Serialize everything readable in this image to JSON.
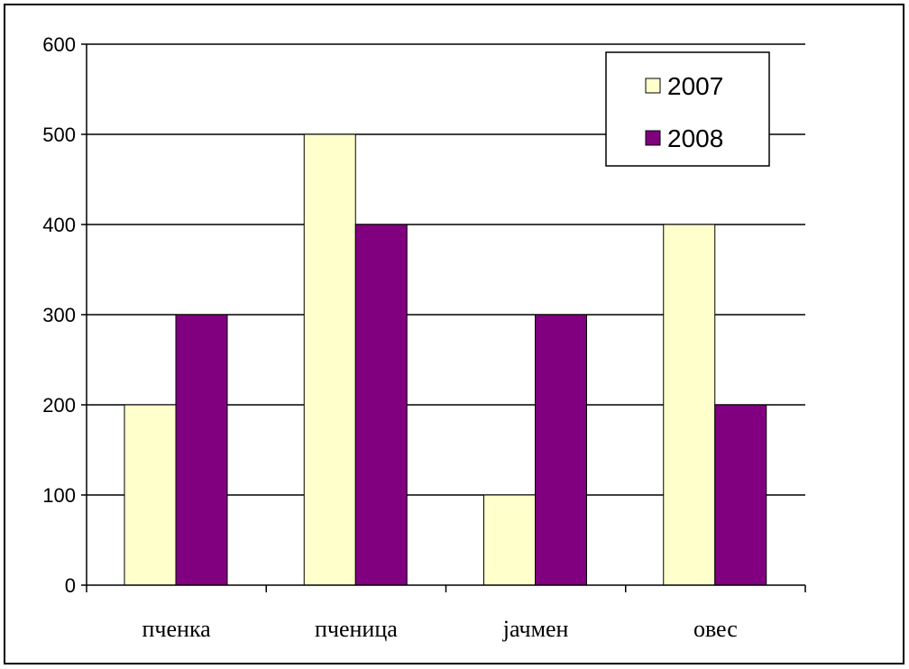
{
  "chart_data": {
    "type": "bar",
    "categories": [
      "пченка",
      "пченица",
      "јачмен",
      "овес"
    ],
    "series": [
      {
        "name": "2007",
        "values": [
          200,
          500,
          100,
          400
        ],
        "color": "#FFFFCC"
      },
      {
        "name": "2008",
        "values": [
          300,
          400,
          300,
          200
        ],
        "color": "#800080"
      }
    ],
    "title": "",
    "xlabel": "",
    "ylabel": "",
    "ylim": [
      0,
      600
    ],
    "yticks": [
      "0",
      "100",
      "200",
      "300",
      "400",
      "500",
      "600"
    ],
    "grid": true,
    "legend_position": "top-right"
  }
}
